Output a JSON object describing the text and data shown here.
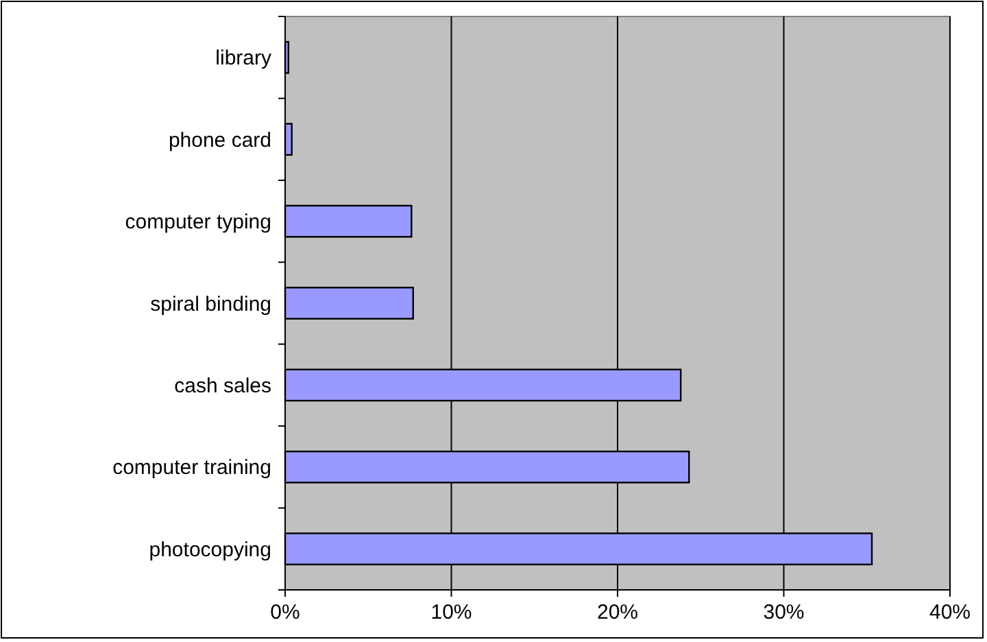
{
  "chart_data": {
    "type": "bar",
    "orientation": "horizontal",
    "categories": [
      "library",
      "phone card",
      "computer typing",
      "spiral binding",
      "cash sales",
      "computer training",
      "photocopying"
    ],
    "values": [
      0.2,
      0.4,
      7.6,
      7.7,
      23.8,
      24.3,
      35.3
    ],
    "color": "#9999ff",
    "xlim": [
      0,
      40
    ],
    "xticks": [
      {
        "value": 0,
        "label": "0%"
      },
      {
        "value": 10,
        "label": "10%"
      },
      {
        "value": 20,
        "label": "20%"
      },
      {
        "value": 30,
        "label": "30%"
      },
      {
        "value": 40,
        "label": "40%"
      }
    ],
    "grid": "x"
  }
}
